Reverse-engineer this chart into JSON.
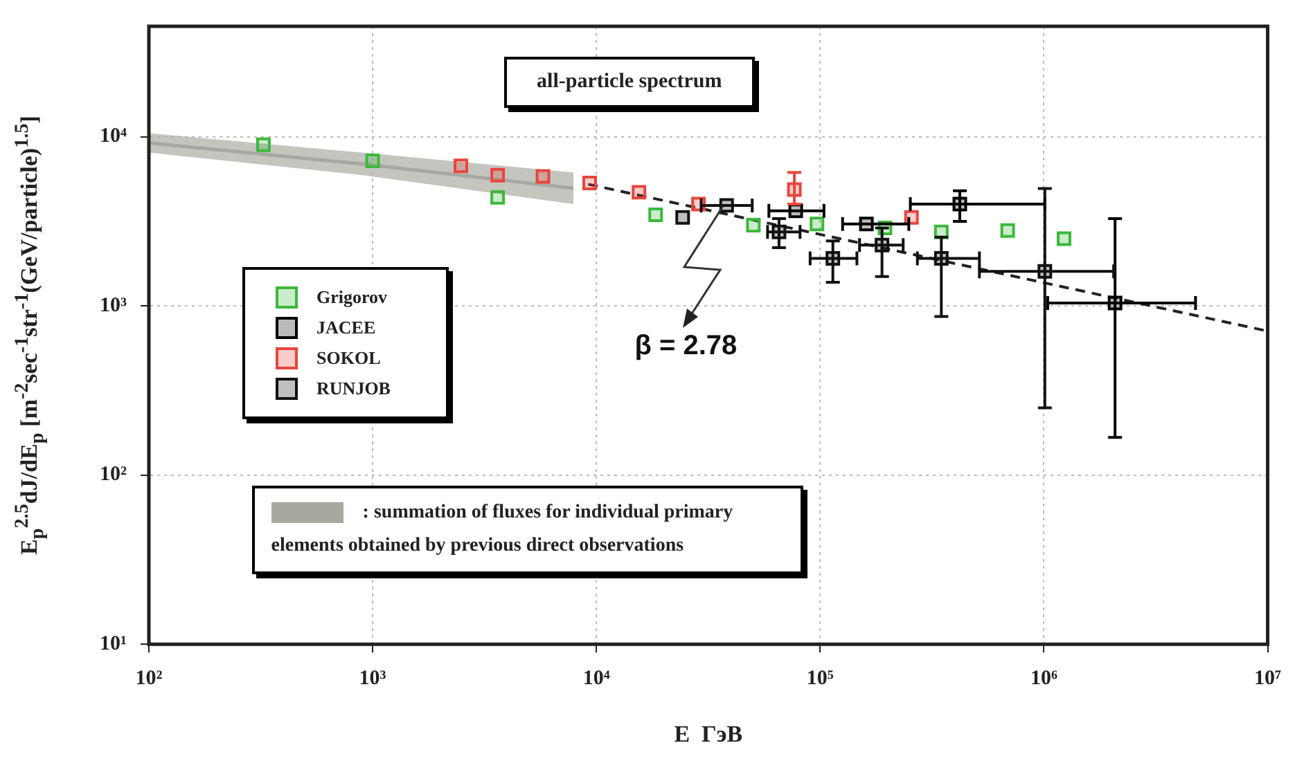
{
  "chart_data": {
    "type": "scatter",
    "title": "all-particle spectrum",
    "xlabel": "E  ГэВ",
    "ylabel": "E$_{p}$$^{2.5}$dJ/dE$_{p}$  [m$^{-2}$sec$^{-1}$str$^{-1}$(GeV/particle)$^{1.5}$]",
    "log": "xy",
    "xlim": [
      100,
      10000000
    ],
    "xticks": [
      {
        "value": 100,
        "label": "10²"
      },
      {
        "value": 1000,
        "label": "10³"
      },
      {
        "value": 10000,
        "label": "10⁴"
      },
      {
        "value": 100000,
        "label": "10⁵"
      },
      {
        "value": 1000000,
        "label": "10⁶"
      },
      {
        "value": 10000000,
        "label": "10⁷"
      }
    ],
    "ylim": [
      10,
      45000
    ],
    "yticks": [
      {
        "value": 10,
        "label": "10¹"
      },
      {
        "value": 100,
        "label": "10²"
      },
      {
        "value": 1000,
        "label": "10³"
      },
      {
        "value": 10000,
        "label": "10⁴"
      }
    ],
    "grid": true,
    "legend": "left",
    "marker": "square",
    "annotations": [
      {
        "text": "β = 2.78",
        "x": 38000,
        "y": 3900
      }
    ],
    "series": [
      {
        "name": ": summation of fluxes for individual primary elements obtained by previous direct observations",
        "type": "line",
        "marker": "none",
        "color": "#a8a8a0",
        "x": [
          100,
          900,
          7900
        ],
        "values": [
          9200,
          6900,
          4960
        ],
        "lower": [
          8060,
          5930,
          4000
        ],
        "upper": [
          10500,
          8060,
          6150
        ]
      },
      {
        "name": "Grigorov",
        "color": "#3cb83c",
        "x": [
          325,
          1000,
          3620,
          18400,
          50300,
          96800,
          195000,
          348000,
          689000,
          1230000
        ],
        "values": [
          8970,
          7200,
          4380,
          3460,
          3000,
          3050,
          2890,
          2740,
          2790,
          2500
        ]
      },
      {
        "name": "JACEE",
        "color": "#000000",
        "x": [
          77800,
          161000,
          421000,
          2080000
        ],
        "values": [
          3650,
          3050,
          4000,
          1040
        ],
        "errors": [
          null,
          null,
          [
            3160,
            4790
          ],
          [
            167,
            3280
          ]
        ],
        "xerrors": [
          [
            59000,
            104000
          ],
          [
            126000,
            249000
          ],
          [
            253000,
            1010000
          ],
          [
            1040000,
            4760000
          ]
        ]
      },
      {
        "name": "SOKOL",
        "color": "#e8453c",
        "x": [
          2480,
          3620,
          5770,
          9330,
          15500,
          28600,
          76700,
          256000
        ],
        "values": [
          6730,
          5930,
          5830,
          5330,
          4700,
          4000,
          4870,
          3340
        ],
        "errors": [
          null,
          null,
          null,
          null,
          null,
          null,
          [
            4000,
            6150
          ],
          null
        ]
      },
      {
        "name": "RUNJOB",
        "color": "#111111",
        "x": [
          24300,
          38200,
          65500,
          114000,
          189000,
          348000,
          1010000
        ],
        "values": [
          3340,
          3930,
          2740,
          1910,
          2290,
          1910,
          1600
        ],
        "errors": [
          null,
          null,
          [
            2210,
            3280
          ],
          [
            1380,
            2420
          ],
          [
            1490,
            2890
          ],
          [
            866,
            2550
          ],
          [
            250,
            4950
          ]
        ],
        "xerrors": [
          null,
          [
            29400,
            49700
          ],
          [
            58200,
            81300
          ],
          [
            90200,
            146000
          ],
          [
            150000,
            235000
          ],
          [
            272000,
            515000
          ],
          [
            515000,
            2050000
          ]
        ]
      },
      {
        "type": "line",
        "marker": "none",
        "color": "#222222",
        "line_style": "dashed",
        "x": [
          9190,
          10000000
        ],
        "values": [
          5240,
          710
        ]
      }
    ]
  }
}
